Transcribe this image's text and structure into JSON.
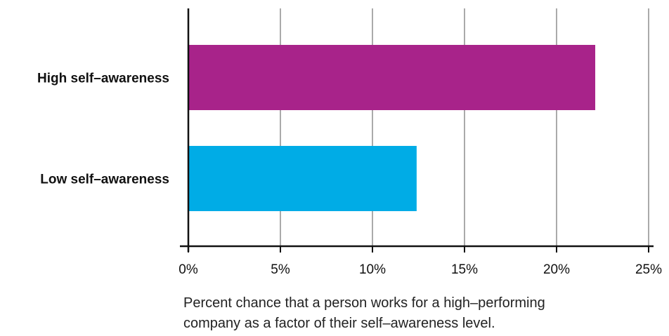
{
  "chart_data": {
    "type": "bar",
    "orientation": "horizontal",
    "categories": [
      "High self–awareness",
      "Low self–awareness"
    ],
    "values": [
      22.1,
      12.4
    ],
    "colors": [
      "#a8238a",
      "#00ace6"
    ],
    "xlim": [
      0,
      25
    ],
    "xticks": [
      "0%",
      "5%",
      "10%",
      "15%",
      "20%",
      "25%"
    ],
    "xtick_values": [
      0,
      5,
      10,
      15,
      20,
      25
    ],
    "grid": "vertical",
    "caption_lines": [
      "Percent chance that a person works for a high–performing",
      "company as a factor of their self–awareness level."
    ]
  }
}
